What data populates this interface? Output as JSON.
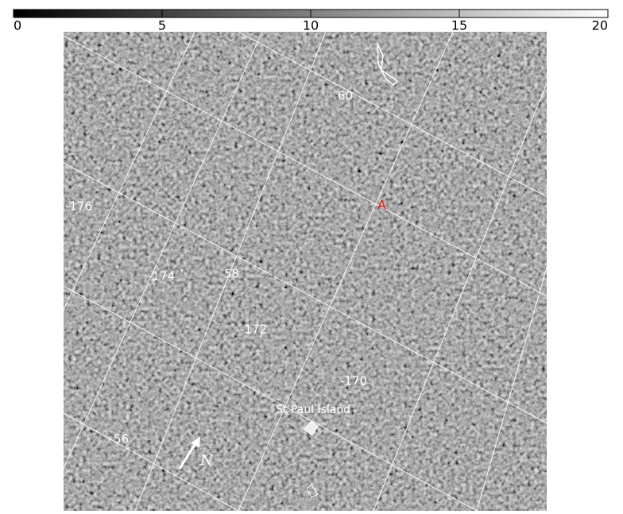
{
  "colorbar": {
    "lim": [
      0,
      20
    ],
    "ticks": [
      0,
      5,
      10,
      15,
      20
    ]
  },
  "map": {
    "grid_labels": [
      "60",
      "-176",
      "-174",
      "58",
      "-172",
      "-170",
      "56"
    ],
    "point_label": "A",
    "place_label": "St Paul Island",
    "north_label": "N"
  }
}
